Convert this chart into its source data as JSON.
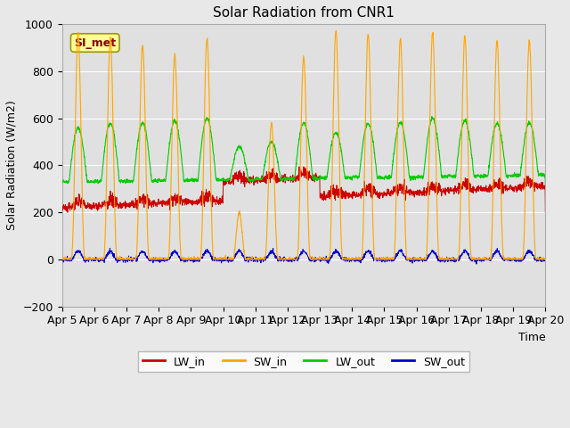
{
  "title": "Solar Radiation from CNR1",
  "xlabel": "Time",
  "ylabel": "Solar Radiation (W/m2)",
  "annotation": "SI_met",
  "ylim": [
    -200,
    1000
  ],
  "yticks": [
    -200,
    0,
    200,
    400,
    600,
    800,
    1000
  ],
  "line_colors": {
    "LW_in": "#cc0000",
    "SW_in": "#ffa500",
    "LW_out": "#00cc00",
    "SW_out": "#0000cc"
  },
  "x_tick_labels": [
    "Apr 5",
    "Apr 6",
    "Apr 7",
    "Apr 8",
    "Apr 9",
    "Apr 10",
    "Apr 11",
    "Apr 12",
    "Apr 13",
    "Apr 14",
    "Apr 15",
    "Apr 16",
    "Apr 17",
    "Apr 18",
    "Apr 19",
    "Apr 20"
  ],
  "fig_bg_color": "#e8e8e8",
  "plot_bg_color": "#e0e0e0",
  "n_days": 15,
  "points_per_day": 144,
  "sw_peaks": [
    960,
    940,
    910,
    870,
    940,
    200,
    580,
    860,
    970,
    960,
    940,
    960,
    950,
    930,
    930
  ],
  "sw_cloudy_days": [
    5
  ],
  "lw_in_base": 250,
  "lw_out_base": 350
}
